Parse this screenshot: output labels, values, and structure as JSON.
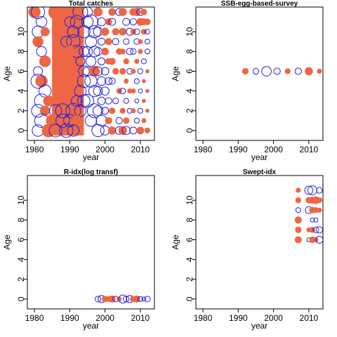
{
  "colors": {
    "positive": "#EE6644",
    "negative": "#2222DD",
    "frame": "#000000"
  },
  "chart_data": [
    {
      "type": "scatter",
      "subtype": "bubble",
      "title": "Total catches",
      "xlabel": "year",
      "ylabel": "Age",
      "xlim": [
        1978,
        2014
      ],
      "ylim": [
        -1,
        12.5
      ],
      "xticks": [
        1980,
        1990,
        2000,
        2010
      ],
      "yticks": [
        0,
        2,
        4,
        6,
        8,
        10
      ],
      "size_scale": 1.0,
      "dense_fill": {
        "x": [
          1985,
          1994
        ],
        "y": [
          -0.5,
          12.5
        ]
      },
      "points": [
        {
          "x": 1980,
          "y": 12,
          "v": 1.8
        },
        {
          "x": 1981,
          "y": 12,
          "v": -2.2
        },
        {
          "x": 1982,
          "y": 11,
          "v": -1.4
        },
        {
          "x": 1981,
          "y": 10,
          "v": -1.6
        },
        {
          "x": 1983,
          "y": 10,
          "v": 1.0
        },
        {
          "x": 1981,
          "y": 9,
          "v": 1.4
        },
        {
          "x": 1982,
          "y": 8,
          "v": -1.2
        },
        {
          "x": 1983,
          "y": 7,
          "v": 1.6
        },
        {
          "x": 1981,
          "y": 6,
          "v": -1.0
        },
        {
          "x": 1982,
          "y": 5,
          "v": 1.8
        },
        {
          "x": 1981,
          "y": 5,
          "v": -2.4
        },
        {
          "x": 1983,
          "y": 4,
          "v": -1.8
        },
        {
          "x": 1982,
          "y": 3,
          "v": -2.4
        },
        {
          "x": 1984,
          "y": 3,
          "v": 1.4
        },
        {
          "x": 1981,
          "y": 2,
          "v": -2.0
        },
        {
          "x": 1983,
          "y": 2,
          "v": 1.2
        },
        {
          "x": 1982,
          "y": 1,
          "v": -2.2
        },
        {
          "x": 1981,
          "y": 0,
          "v": -1.6
        },
        {
          "x": 1984,
          "y": 0,
          "v": 2.2
        },
        {
          "x": 1986,
          "y": 12,
          "v": 2.6
        },
        {
          "x": 1988,
          "y": 12,
          "v": 2.4
        },
        {
          "x": 1990,
          "y": 11,
          "v": -1.2
        },
        {
          "x": 1992,
          "y": 11,
          "v": -2.0
        },
        {
          "x": 1993,
          "y": 12,
          "v": -2.6
        },
        {
          "x": 1991,
          "y": 10,
          "v": -1.6
        },
        {
          "x": 1994,
          "y": 10,
          "v": -1.8
        },
        {
          "x": 1989,
          "y": 9,
          "v": -1.4
        },
        {
          "x": 1991,
          "y": 9,
          "v": -2.2
        },
        {
          "x": 1992,
          "y": 8,
          "v": -1.8
        },
        {
          "x": 1994,
          "y": 8,
          "v": -1.2
        },
        {
          "x": 1990,
          "y": 8,
          "v": 1.6
        },
        {
          "x": 1993,
          "y": 7,
          "v": -1.0
        },
        {
          "x": 1994,
          "y": 6,
          "v": -1.4
        },
        {
          "x": 1992,
          "y": 5,
          "v": 1.4
        },
        {
          "x": 1994,
          "y": 5,
          "v": -2.0
        },
        {
          "x": 1993,
          "y": 4,
          "v": -1.6
        },
        {
          "x": 1990,
          "y": 3,
          "v": 1.6
        },
        {
          "x": 1992,
          "y": 3,
          "v": -1.4
        },
        {
          "x": 1994,
          "y": 3,
          "v": -1.8
        },
        {
          "x": 1986,
          "y": 2,
          "v": -1.8
        },
        {
          "x": 1988,
          "y": 2,
          "v": -2.4
        },
        {
          "x": 1991,
          "y": 2,
          "v": -2.6
        },
        {
          "x": 1993,
          "y": 2,
          "v": -1.6
        },
        {
          "x": 1985,
          "y": 1,
          "v": 1.8
        },
        {
          "x": 1988,
          "y": 1,
          "v": -2.2
        },
        {
          "x": 1990,
          "y": 1,
          "v": -1.8
        },
        {
          "x": 1992,
          "y": 1,
          "v": 1.4
        },
        {
          "x": 1986,
          "y": 0,
          "v": -2.0
        },
        {
          "x": 1989,
          "y": 0,
          "v": -2.2
        },
        {
          "x": 1991,
          "y": 0,
          "v": -1.6
        },
        {
          "x": 1995,
          "y": 12,
          "v": -1.2
        },
        {
          "x": 1996,
          "y": 11,
          "v": -2.4
        },
        {
          "x": 1995,
          "y": 11,
          "v": -1.6
        },
        {
          "x": 1997,
          "y": 10,
          "v": -1.8
        },
        {
          "x": 1996,
          "y": 9,
          "v": -1.6
        },
        {
          "x": 1995,
          "y": 8,
          "v": -1.2
        },
        {
          "x": 1997,
          "y": 8,
          "v": -1.4
        },
        {
          "x": 1996,
          "y": 7,
          "v": -1.2
        },
        {
          "x": 1995,
          "y": 6,
          "v": -1.0
        },
        {
          "x": 1997,
          "y": 6,
          "v": 1.4
        },
        {
          "x": 1996,
          "y": 5,
          "v": -1.8
        },
        {
          "x": 1997,
          "y": 4,
          "v": -1.6
        },
        {
          "x": 1995,
          "y": 3,
          "v": -2.0
        },
        {
          "x": 1997,
          "y": 2,
          "v": -2.4
        },
        {
          "x": 1996,
          "y": 1,
          "v": -1.6
        },
        {
          "x": 1998,
          "y": 0,
          "v": -1.8
        },
        {
          "x": 1998,
          "y": 12,
          "v": 1.0
        },
        {
          "x": 1999,
          "y": 11,
          "v": -0.8
        },
        {
          "x": 2001,
          "y": 11,
          "v": 0.6
        },
        {
          "x": 1998,
          "y": 10,
          "v": -1.0
        },
        {
          "x": 2000,
          "y": 10,
          "v": 0.8
        },
        {
          "x": 1999,
          "y": 9,
          "v": -0.6
        },
        {
          "x": 2001,
          "y": 9,
          "v": 0.6
        },
        {
          "x": 1998,
          "y": 8,
          "v": -0.8
        },
        {
          "x": 2000,
          "y": 8,
          "v": 0.7
        },
        {
          "x": 1999,
          "y": 7,
          "v": -0.6
        },
        {
          "x": 2001,
          "y": 7,
          "v": 0.5
        },
        {
          "x": 1998,
          "y": 6,
          "v": -1.0
        },
        {
          "x": 2000,
          "y": 6,
          "v": -0.7
        },
        {
          "x": 1999,
          "y": 5,
          "v": -0.9
        },
        {
          "x": 2001,
          "y": 5,
          "v": -0.6
        },
        {
          "x": 1998,
          "y": 4,
          "v": -1.0
        },
        {
          "x": 2000,
          "y": 4,
          "v": -0.8
        },
        {
          "x": 1999,
          "y": 3,
          "v": -0.7
        },
        {
          "x": 2001,
          "y": 3,
          "v": -0.5
        },
        {
          "x": 1998,
          "y": 2,
          "v": -1.2
        },
        {
          "x": 2000,
          "y": 2,
          "v": -0.6
        },
        {
          "x": 1999,
          "y": 1,
          "v": -1.4
        },
        {
          "x": 2001,
          "y": 1,
          "v": 0.6
        },
        {
          "x": 2000,
          "y": 0,
          "v": -1.0
        },
        {
          "x": 2002,
          "y": 12,
          "v": 0.7
        },
        {
          "x": 2002,
          "y": 11,
          "v": -0.6
        },
        {
          "x": 2003,
          "y": 10,
          "v": 0.6
        },
        {
          "x": 2004,
          "y": 12,
          "v": -0.6
        },
        {
          "x": 2003,
          "y": 9,
          "v": -0.5
        },
        {
          "x": 2004,
          "y": 8,
          "v": 0.5
        },
        {
          "x": 2002,
          "y": 7,
          "v": 0.6
        },
        {
          "x": 2003,
          "y": 6,
          "v": 0.5
        },
        {
          "x": 2002,
          "y": 5,
          "v": -0.5
        },
        {
          "x": 2004,
          "y": 4,
          "v": 0.4
        },
        {
          "x": 2003,
          "y": 3,
          "v": -0.4
        },
        {
          "x": 2002,
          "y": 2,
          "v": 0.5
        },
        {
          "x": 2004,
          "y": 1,
          "v": -0.5
        },
        {
          "x": 2002,
          "y": 0,
          "v": 0.8
        },
        {
          "x": 2004,
          "y": 0,
          "v": -0.7
        },
        {
          "x": 2005,
          "y": 12,
          "v": 0.8
        },
        {
          "x": 2006,
          "y": 11,
          "v": -0.6
        },
        {
          "x": 2005,
          "y": 10,
          "v": 0.7
        },
        {
          "x": 2007,
          "y": 10,
          "v": -0.6
        },
        {
          "x": 2006,
          "y": 9,
          "v": -0.4
        },
        {
          "x": 2005,
          "y": 8,
          "v": 0.4
        },
        {
          "x": 2007,
          "y": 8,
          "v": -0.5
        },
        {
          "x": 2006,
          "y": 7,
          "v": 0.4
        },
        {
          "x": 2005,
          "y": 6,
          "v": 0.5
        },
        {
          "x": 2007,
          "y": 6,
          "v": -0.4
        },
        {
          "x": 2006,
          "y": 5,
          "v": 0.3
        },
        {
          "x": 2005,
          "y": 4,
          "v": -0.4
        },
        {
          "x": 2007,
          "y": 4,
          "v": 0.3
        },
        {
          "x": 2006,
          "y": 3,
          "v": -0.3
        },
        {
          "x": 2005,
          "y": 2,
          "v": 0.4
        },
        {
          "x": 2007,
          "y": 2,
          "v": -0.3
        },
        {
          "x": 2006,
          "y": 1,
          "v": 0.5
        },
        {
          "x": 2005,
          "y": 0,
          "v": 0.9
        },
        {
          "x": 2006,
          "y": 0,
          "v": -0.8
        },
        {
          "x": 2008,
          "y": 12,
          "v": 0.7
        },
        {
          "x": 2009,
          "y": 12,
          "v": 0.8
        },
        {
          "x": 2010,
          "y": 12,
          "v": -0.6
        },
        {
          "x": 2011,
          "y": 12,
          "v": 0.5
        },
        {
          "x": 2008,
          "y": 11,
          "v": -0.5
        },
        {
          "x": 2010,
          "y": 11,
          "v": 0.7
        },
        {
          "x": 2011,
          "y": 11,
          "v": 0.6
        },
        {
          "x": 2012,
          "y": 11,
          "v": 0.5
        },
        {
          "x": 2008,
          "y": 10,
          "v": 0.4
        },
        {
          "x": 2009,
          "y": 10,
          "v": -0.4
        },
        {
          "x": 2011,
          "y": 10,
          "v": 0.4
        },
        {
          "x": 2012,
          "y": 10,
          "v": -0.3
        },
        {
          "x": 2009,
          "y": 9,
          "v": -0.4
        },
        {
          "x": 2010,
          "y": 9,
          "v": 0.3
        },
        {
          "x": 2012,
          "y": 9,
          "v": -0.3
        },
        {
          "x": 2008,
          "y": 8,
          "v": -0.4
        },
        {
          "x": 2010,
          "y": 8,
          "v": 0.3
        },
        {
          "x": 2012,
          "y": 8,
          "v": -0.3
        },
        {
          "x": 2009,
          "y": 7,
          "v": 0.3
        },
        {
          "x": 2011,
          "y": 7,
          "v": -0.3
        },
        {
          "x": 2008,
          "y": 6,
          "v": 0.3
        },
        {
          "x": 2010,
          "y": 6,
          "v": -0.3
        },
        {
          "x": 2012,
          "y": 6,
          "v": 0.2
        },
        {
          "x": 2009,
          "y": 5,
          "v": -0.3
        },
        {
          "x": 2011,
          "y": 5,
          "v": 0.2
        },
        {
          "x": 2008,
          "y": 4,
          "v": 0.3
        },
        {
          "x": 2010,
          "y": 4,
          "v": -0.2
        },
        {
          "x": 2012,
          "y": 4,
          "v": 0.2
        },
        {
          "x": 2009,
          "y": 3,
          "v": -0.2
        },
        {
          "x": 2011,
          "y": 3,
          "v": 0.2
        },
        {
          "x": 2008,
          "y": 2,
          "v": 0.3
        },
        {
          "x": 2010,
          "y": 2,
          "v": -0.3
        },
        {
          "x": 2012,
          "y": 2,
          "v": 0.2
        },
        {
          "x": 2009,
          "y": 1,
          "v": -0.3
        },
        {
          "x": 2011,
          "y": 1,
          "v": 0.3
        },
        {
          "x": 2008,
          "y": 0,
          "v": -0.6
        },
        {
          "x": 2010,
          "y": 0,
          "v": 0.7
        },
        {
          "x": 2012,
          "y": 0,
          "v": 0.4
        }
      ]
    },
    {
      "type": "scatter",
      "subtype": "bubble",
      "title": "SSB-egg-based-survey",
      "xlabel": "year",
      "ylabel": "Age",
      "xlim": [
        1978,
        2014
      ],
      "ylim": [
        -1,
        12.5
      ],
      "xticks": [
        1980,
        1990,
        2000,
        2010
      ],
      "yticks": [
        0,
        2,
        4,
        6,
        8,
        10
      ],
      "size_scale": 1.0,
      "points": [
        {
          "x": 1992,
          "y": 6,
          "v": 0.5
        },
        {
          "x": 1995,
          "y": 6,
          "v": -0.4
        },
        {
          "x": 1998,
          "y": 6,
          "v": -1.1
        },
        {
          "x": 2001,
          "y": 6,
          "v": -0.5
        },
        {
          "x": 2004,
          "y": 6,
          "v": 0.4
        },
        {
          "x": 2007,
          "y": 6,
          "v": -0.5
        },
        {
          "x": 2010,
          "y": 6,
          "v": 0.8
        },
        {
          "x": 2013,
          "y": 6,
          "v": 0.3
        }
      ]
    },
    {
      "type": "scatter",
      "subtype": "bubble",
      "title": "R-idx(log transf)",
      "xlabel": "year",
      "ylabel": "Age",
      "xlim": [
        1978,
        2014
      ],
      "ylim": [
        -1,
        12.5
      ],
      "xticks": [
        1980,
        1990,
        2000,
        2010
      ],
      "yticks": [
        0,
        2,
        4,
        6,
        8,
        10
      ],
      "size_scale": 1.0,
      "points": [
        {
          "x": 1998,
          "y": 0,
          "v": -0.4
        },
        {
          "x": 1999,
          "y": 0,
          "v": -0.6
        },
        {
          "x": 2000,
          "y": 0,
          "v": 0.5
        },
        {
          "x": 2001,
          "y": 0,
          "v": 0.4
        },
        {
          "x": 2002,
          "y": 0,
          "v": 0.6
        },
        {
          "x": 2003,
          "y": 0,
          "v": -0.4
        },
        {
          "x": 2004,
          "y": 0,
          "v": 0.3
        },
        {
          "x": 2005,
          "y": 0,
          "v": -0.8
        },
        {
          "x": 2006,
          "y": 0,
          "v": -0.4
        },
        {
          "x": 2007,
          "y": 0,
          "v": -0.6
        },
        {
          "x": 2008,
          "y": 0,
          "v": 0.5
        },
        {
          "x": 2009,
          "y": 0,
          "v": 0.6
        },
        {
          "x": 2010,
          "y": 0,
          "v": -0.3
        },
        {
          "x": 2011,
          "y": 0,
          "v": -0.2
        },
        {
          "x": 2012,
          "y": 0,
          "v": -0.4
        }
      ]
    },
    {
      "type": "scatter",
      "subtype": "bubble",
      "title": "Swept-idx",
      "xlabel": "year",
      "ylabel": "Age",
      "xlim": [
        1978,
        2014
      ],
      "ylim": [
        -1,
        12.5
      ],
      "xticks": [
        1980,
        1990,
        2000,
        2010
      ],
      "yticks": [
        0,
        2,
        4,
        6,
        8,
        10
      ],
      "size_scale": 1.0,
      "points": [
        {
          "x": 2007,
          "y": 11,
          "v": 0.3
        },
        {
          "x": 2007,
          "y": 10,
          "v": 0.4
        },
        {
          "x": 2007,
          "y": 9,
          "v": -0.3
        },
        {
          "x": 2007,
          "y": 8,
          "v": 0.6
        },
        {
          "x": 2007,
          "y": 7,
          "v": 0.5
        },
        {
          "x": 2007,
          "y": 6,
          "v": 0.6
        },
        {
          "x": 2010,
          "y": 11,
          "v": -0.8
        },
        {
          "x": 2010,
          "y": 10,
          "v": 0.5
        },
        {
          "x": 2010,
          "y": 9,
          "v": -0.6
        },
        {
          "x": 2010,
          "y": 7,
          "v": 0.3
        },
        {
          "x": 2010,
          "y": 6,
          "v": -0.2
        },
        {
          "x": 2011,
          "y": 11,
          "v": -1.0
        },
        {
          "x": 2011,
          "y": 10,
          "v": 0.6
        },
        {
          "x": 2011,
          "y": 9,
          "v": 0.5
        },
        {
          "x": 2011,
          "y": 8,
          "v": -0.2
        },
        {
          "x": 2011,
          "y": 7,
          "v": 0.4
        },
        {
          "x": 2011,
          "y": 6,
          "v": 0.5
        },
        {
          "x": 2012,
          "y": 10,
          "v": 0.7
        },
        {
          "x": 2012,
          "y": 9,
          "v": 0.4
        },
        {
          "x": 2012,
          "y": 8,
          "v": -0.2
        },
        {
          "x": 2012,
          "y": 7,
          "v": -0.4
        },
        {
          "x": 2012,
          "y": 6,
          "v": 0.3
        },
        {
          "x": 2013,
          "y": 11,
          "v": -0.4
        },
        {
          "x": 2013,
          "y": 10,
          "v": 0.4
        },
        {
          "x": 2013,
          "y": 9,
          "v": 0.3
        },
        {
          "x": 2013,
          "y": 7,
          "v": -0.5
        },
        {
          "x": 2013,
          "y": 6,
          "v": -0.6
        }
      ]
    }
  ]
}
